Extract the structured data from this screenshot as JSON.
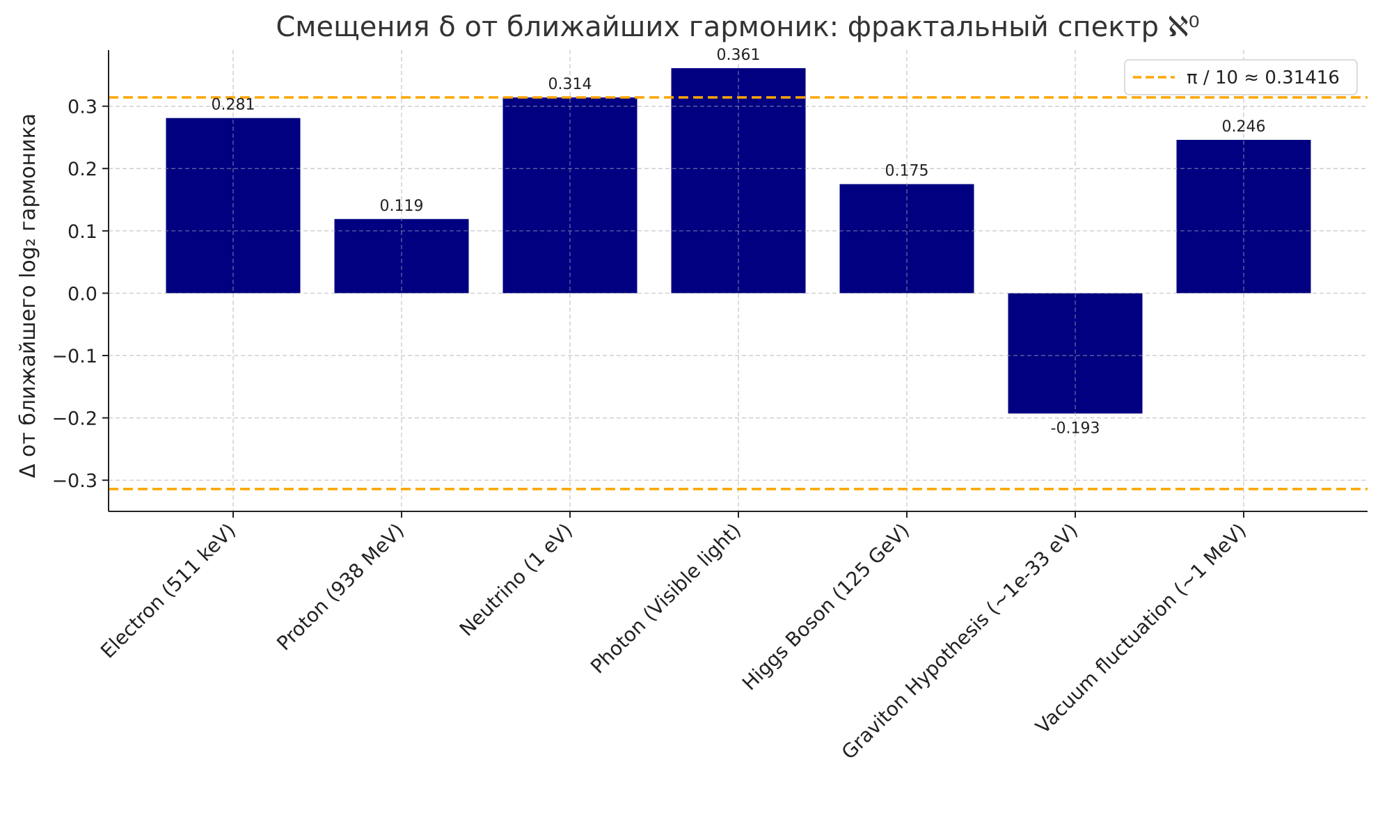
{
  "chart_data": {
    "type": "bar",
    "title": "Смещения δ от ближайших гармоник: фрактальный спектр ℵ⁰",
    "xlabel": "",
    "ylabel": "Δ от ближайшего log₂ гармоника",
    "categories": [
      "Electron (511 keV)",
      "Proton (938 MeV)",
      "Neutrino (1 eV)",
      "Photon (Visible light)",
      "Higgs Boson (125 GeV)",
      "Graviton Hypothesis (~1e-33 eV)",
      "Vacuum fluctuation (~1 MeV)"
    ],
    "values": [
      0.281,
      0.119,
      0.314,
      0.361,
      0.175,
      -0.193,
      0.246
    ],
    "data_labels": [
      "0.281",
      "0.119",
      "0.314",
      "0.361",
      "0.175",
      "-0.193",
      "0.246"
    ],
    "bar_color": "#000080",
    "ylim": [
      -0.35,
      0.39
    ],
    "yticks": [
      -0.3,
      -0.2,
      -0.1,
      0.0,
      0.1,
      0.2,
      0.3
    ],
    "ytick_labels": [
      "−0.3",
      "−0.2",
      "−0.1",
      "0.0",
      "0.1",
      "0.2",
      "0.3"
    ],
    "reference_lines": [
      {
        "y": 0.31416,
        "style": "dashed",
        "color": "#FFA500"
      },
      {
        "y": -0.31416,
        "style": "dashed",
        "color": "#FFA500"
      }
    ],
    "legend": {
      "entries": [
        {
          "label": "π / 10 ≈ 0.31416",
          "color": "#FFA500",
          "style": "dashed"
        }
      ],
      "placement": "top-right"
    },
    "grid": true
  }
}
